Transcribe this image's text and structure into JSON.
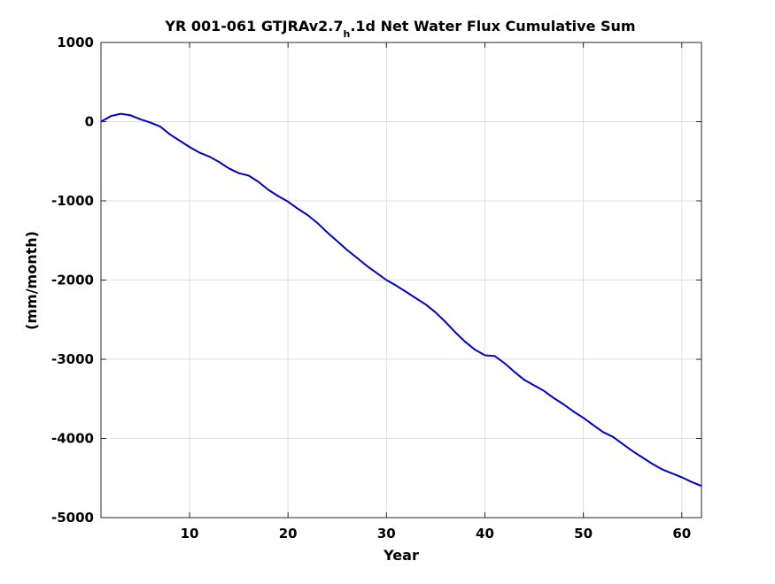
{
  "chart_data": {
    "type": "line",
    "title": "YR 001-061 GTJRAv2.7",
    "title_subscript": "h",
    "title_suffix": ".1d Net Water Flux Cumulative Sum",
    "xlabel": "Year",
    "ylabel": "(mm/month)",
    "xlim": [
      1,
      62
    ],
    "ylim": [
      -5000,
      1000
    ],
    "xticks": [
      10,
      20,
      30,
      40,
      50,
      60
    ],
    "yticks": [
      1000,
      0,
      -1000,
      -2000,
      -3000,
      -4000,
      -5000
    ],
    "grid": true,
    "line_color": "#0000cc",
    "series": [
      {
        "x": [
          1,
          2,
          3,
          4,
          5,
          6,
          7,
          8,
          9,
          10,
          11,
          12,
          13,
          14,
          15,
          16,
          17,
          18,
          19,
          20,
          21,
          22,
          23,
          24,
          25,
          26,
          27,
          28,
          29,
          30,
          31,
          32,
          33,
          34,
          35,
          36,
          37,
          38,
          39,
          40,
          41,
          42,
          43,
          44,
          45,
          46,
          47,
          48,
          49,
          50,
          51,
          52,
          53,
          54,
          55,
          56,
          57,
          58,
          59,
          60,
          61,
          62
        ],
        "values": [
          0,
          70,
          100,
          80,
          30,
          -10,
          -60,
          -160,
          -240,
          -320,
          -390,
          -440,
          -510,
          -590,
          -650,
          -680,
          -760,
          -860,
          -940,
          -1010,
          -1100,
          -1180,
          -1280,
          -1400,
          -1510,
          -1620,
          -1720,
          -1820,
          -1910,
          -2000,
          -2070,
          -2150,
          -2230,
          -2310,
          -2410,
          -2530,
          -2660,
          -2780,
          -2880,
          -2950,
          -2960,
          -3050,
          -3160,
          -3260,
          -3330,
          -3400,
          -3490,
          -3570,
          -3660,
          -3740,
          -3830,
          -3920,
          -3980,
          -4070,
          -4160,
          -4240,
          -4320,
          -4390,
          -4440,
          -4490,
          -4550,
          -4600
        ]
      }
    ]
  }
}
